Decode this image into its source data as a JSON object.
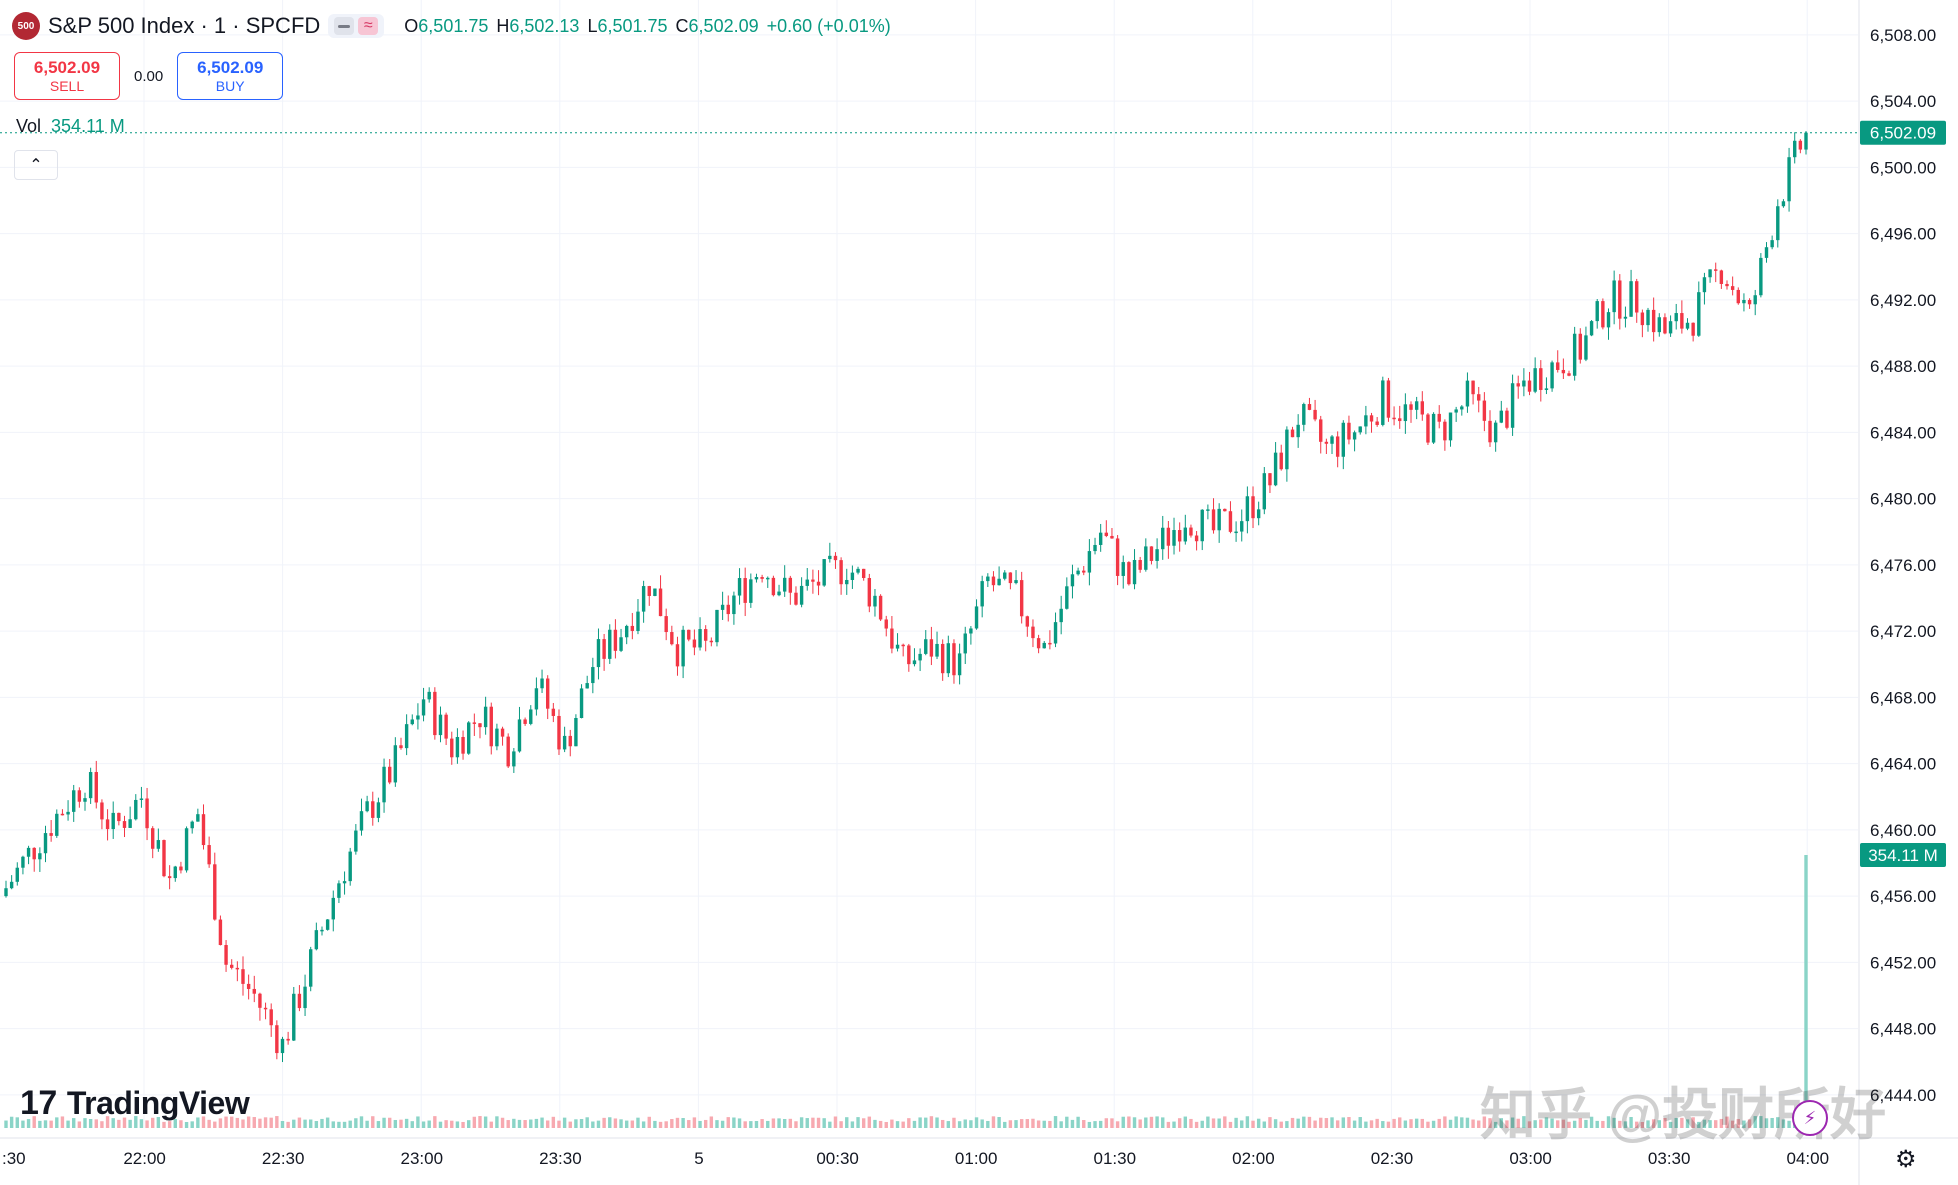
{
  "header": {
    "logo_text": "500",
    "title": "S&P 500 Index · 1 · SPCFD",
    "ohlc": {
      "o_label": "O",
      "o_value": "6,501.75",
      "h_label": "H",
      "h_value": "6,502.13",
      "l_label": "L",
      "l_value": "6,501.75",
      "c_label": "C",
      "c_value": "6,502.09",
      "change": "+0.60 (+0.01%)"
    }
  },
  "trade": {
    "sell_price": "6,502.09",
    "sell_label": "SELL",
    "spread": "0.00",
    "buy_price": "6,502.09",
    "buy_label": "BUY"
  },
  "volume": {
    "label": "Vol",
    "value": "354.11 M"
  },
  "branding": {
    "name": "TradingView",
    "mark": "17"
  },
  "watermark": "知乎 @投财所好",
  "colors": {
    "up": "#089981",
    "down": "#f23645",
    "grid": "#f0f3fa",
    "price_tag": "#089981"
  },
  "chart_data": {
    "type": "candlestick",
    "y_ticks": [
      "6,508.00",
      "6,504.00",
      "6,500.00",
      "6,496.00",
      "6,492.00",
      "6,488.00",
      "6,484.00",
      "6,480.00",
      "6,476.00",
      "6,472.00",
      "6,468.00",
      "6,464.00",
      "6,460.00",
      "6,456.00",
      "6,452.00",
      "6,448.00",
      "6,444.00"
    ],
    "ylim": [
      6442.0,
      6509.5
    ],
    "x_ticks": [
      ":30",
      "22:00",
      "22:30",
      "23:00",
      "23:30",
      "5",
      "00:30",
      "01:00",
      "01:30",
      "02:00",
      "02:30",
      "03:00",
      "03:30",
      "04:00"
    ],
    "last_price": 6502.09,
    "last_price_label": "6,502.09",
    "volume_tag": "354.11 M",
    "volume_values_m": [
      8,
      354.11
    ],
    "close_path": [
      [
        0,
        6456
      ],
      [
        8,
        6460
      ],
      [
        15,
        6463
      ],
      [
        20,
        6460
      ],
      [
        25,
        6462
      ],
      [
        30,
        6457
      ],
      [
        35,
        6461
      ],
      [
        40,
        6452
      ],
      [
        45,
        6450
      ],
      [
        50,
        6447
      ],
      [
        55,
        6452
      ],
      [
        60,
        6457
      ],
      [
        65,
        6461
      ],
      [
        70,
        6464
      ],
      [
        75,
        6468
      ],
      [
        80,
        6465
      ],
      [
        85,
        6467
      ],
      [
        90,
        6465
      ],
      [
        95,
        6469
      ],
      [
        100,
        6465
      ],
      [
        105,
        6470
      ],
      [
        110,
        6472
      ],
      [
        115,
        6475
      ],
      [
        120,
        6471
      ],
      [
        125,
        6471
      ],
      [
        130,
        6474
      ],
      [
        135,
        6476
      ],
      [
        140,
        6474
      ],
      [
        145,
        6475
      ],
      [
        150,
        6476
      ],
      [
        155,
        6474
      ],
      [
        160,
        6470
      ],
      [
        165,
        6471
      ],
      [
        170,
        6470
      ],
      [
        175,
        6475
      ],
      [
        180,
        6474
      ],
      [
        185,
        6471
      ],
      [
        190,
        6475
      ],
      [
        195,
        6478
      ],
      [
        200,
        6475
      ],
      [
        205,
        6477
      ],
      [
        210,
        6479
      ],
      [
        215,
        6478
      ],
      [
        220,
        6479
      ],
      [
        225,
        6481
      ],
      [
        230,
        6485
      ],
      [
        235,
        6483
      ],
      [
        240,
        6484
      ],
      [
        245,
        6486
      ],
      [
        250,
        6485
      ],
      [
        255,
        6484
      ],
      [
        260,
        6486
      ],
      [
        265,
        6484
      ],
      [
        270,
        6487
      ],
      [
        275,
        6488
      ],
      [
        280,
        6489
      ],
      [
        285,
        6492
      ],
      [
        290,
        6492
      ],
      [
        295,
        6490
      ],
      [
        300,
        6491
      ],
      [
        305,
        6494
      ],
      [
        310,
        6491
      ],
      [
        315,
        6498
      ],
      [
        320,
        6502.09
      ]
    ]
  }
}
